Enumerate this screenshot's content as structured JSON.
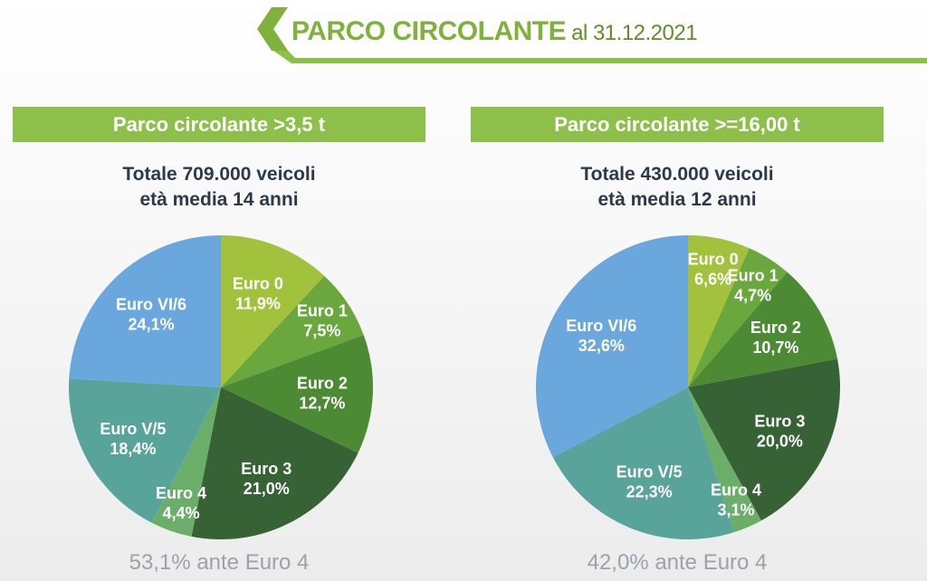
{
  "header": {
    "title": "PARCO CIRCOLANTE",
    "subtitle": "al 31.12.2021",
    "accent_color": "#7fb23a"
  },
  "chart_data": [
    {
      "type": "pie",
      "title": "Parco circolante >3,5 t",
      "total_line": "Totale 709.000 veicoli",
      "age_line": "età media 14 anni",
      "footnote": "53,1% ante Euro 4",
      "start_angle_deg": 0,
      "direction": "clockwise",
      "slices": [
        {
          "label": "Euro 0",
          "value": 11.9,
          "display": "11,9%",
          "color": "#a2c13d"
        },
        {
          "label": "Euro 1",
          "value": 7.5,
          "display": "7,5%",
          "color": "#6aa83e"
        },
        {
          "label": "Euro 2",
          "value": 12.7,
          "display": "12,7%",
          "color": "#4c8a34"
        },
        {
          "label": "Euro 3",
          "value": 21.0,
          "display": "21,0%",
          "color": "#366235"
        },
        {
          "label": "Euro 4",
          "value": 4.4,
          "display": "4,4%",
          "color": "#6aae6a"
        },
        {
          "label": "Euro V/5",
          "value": 18.4,
          "display": "18,4%",
          "color": "#58a39a"
        },
        {
          "label": "Euro VI/6",
          "value": 24.1,
          "display": "24,1%",
          "color": "#6aa7dc"
        }
      ]
    },
    {
      "type": "pie",
      "title": "Parco circolante >=16,00 t",
      "total_line": "Totale 430.000 veicoli",
      "age_line": "età media 12 anni",
      "footnote": "42,0% ante Euro 4",
      "start_angle_deg": 0,
      "direction": "clockwise",
      "slices": [
        {
          "label": "Euro 0",
          "value": 6.6,
          "display": "6,6%",
          "color": "#a2c13d"
        },
        {
          "label": "Euro 1",
          "value": 4.7,
          "display": "4,7%",
          "color": "#6aa83e"
        },
        {
          "label": "Euro 2",
          "value": 10.7,
          "display": "10,7%",
          "color": "#4c8a34"
        },
        {
          "label": "Euro 3",
          "value": 20.0,
          "display": "20,0%",
          "color": "#366235"
        },
        {
          "label": "Euro 4",
          "value": 3.1,
          "display": "3,1%",
          "color": "#6aae6a"
        },
        {
          "label": "Euro V/5",
          "value": 22.3,
          "display": "22,3%",
          "color": "#58a39a"
        },
        {
          "label": "Euro VI/6",
          "value": 32.6,
          "display": "32,6%",
          "color": "#6aa7dc"
        }
      ]
    }
  ]
}
